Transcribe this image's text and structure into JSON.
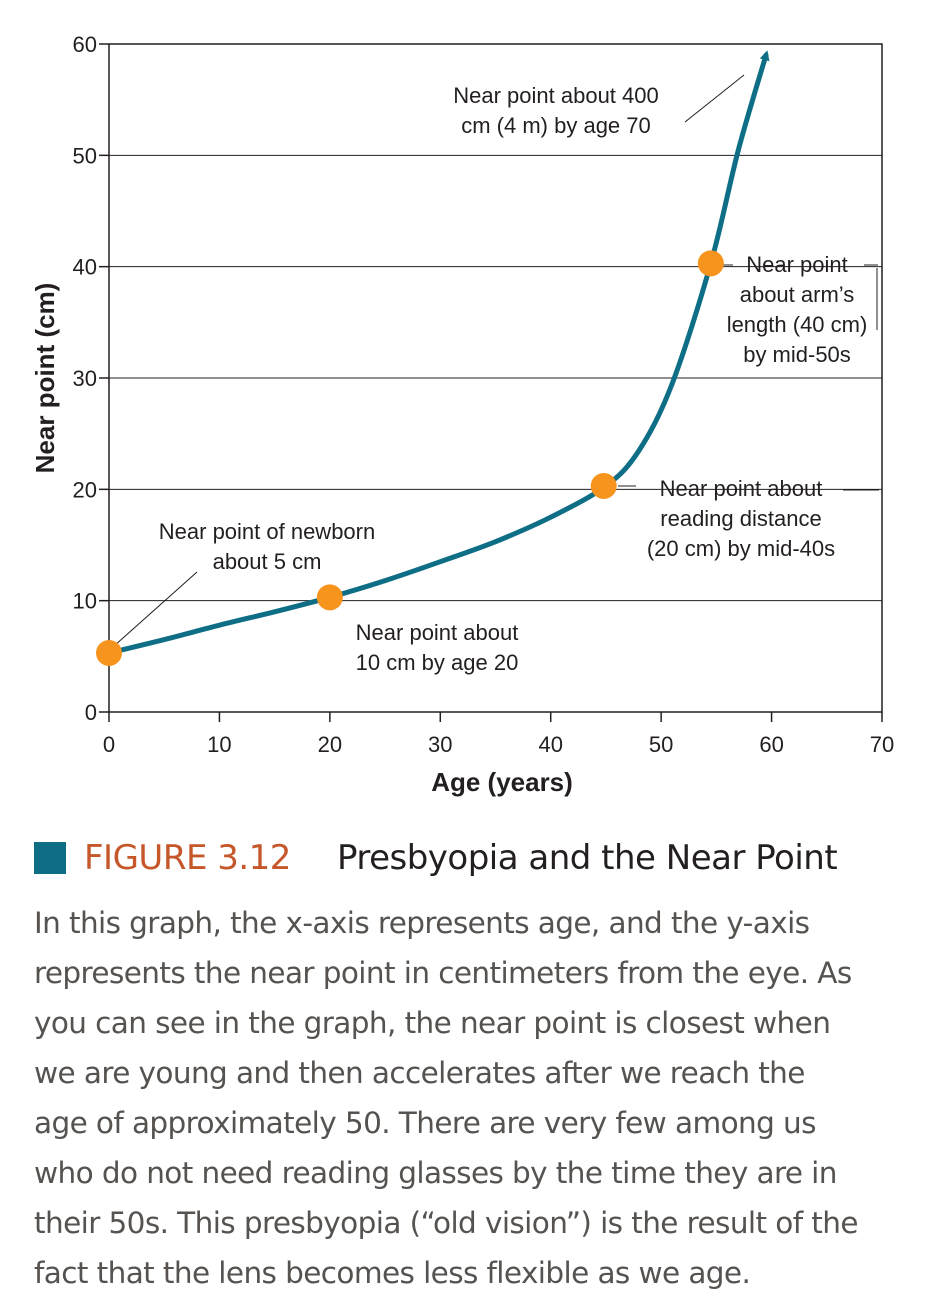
{
  "chart_data": {
    "type": "line",
    "xlabel": "Age (years)",
    "ylabel": "Near point (cm)",
    "xlim": [
      0,
      70
    ],
    "ylim": [
      0,
      60
    ],
    "x_ticks": [
      0,
      10,
      20,
      30,
      40,
      50,
      60,
      70
    ],
    "y_ticks": [
      0,
      10,
      20,
      30,
      40,
      50,
      60
    ],
    "grid": "horizontal",
    "line_color": "#0e6e86",
    "marker_color": "#f7941d",
    "curve": {
      "x": [
        0,
        5,
        10,
        15,
        20,
        25,
        30,
        35,
        40,
        45,
        48,
        51,
        54.5,
        57,
        59.5
      ],
      "y": [
        5.3,
        6.5,
        7.8,
        9.0,
        10.3,
        11.8,
        13.5,
        15.3,
        17.5,
        20.3,
        23.5,
        29.5,
        40.3,
        50.5,
        59
      ]
    },
    "highlighted_points": [
      {
        "x": 0,
        "y": 5.3
      },
      {
        "x": 20,
        "y": 10.3
      },
      {
        "x": 44.8,
        "y": 20.3
      },
      {
        "x": 54.5,
        "y": 40.3
      }
    ],
    "annotations": [
      {
        "id": "newborn",
        "lines": [
          "Near point of newborn",
          "about 5 cm"
        ]
      },
      {
        "id": "age20",
        "lines": [
          "Near point about",
          "10 cm by age 20"
        ]
      },
      {
        "id": "mid40s",
        "lines": [
          "Near point about",
          "reading distance",
          "(20 cm) by mid-40s"
        ]
      },
      {
        "id": "mid50s",
        "lines": [
          "Near point",
          "about arm’s",
          "length (40 cm)",
          "by mid-50s"
        ]
      },
      {
        "id": "age70",
        "lines": [
          "Near point about 400",
          "cm (4 m) by age 70"
        ]
      }
    ]
  },
  "figure": {
    "number": "FIGURE 3.12",
    "title": "Presbyopia and the Near Point",
    "accent_color": "#0e6e86",
    "number_color": "#c5572a",
    "caption_lines": [
      "In this graph, the x-axis represents age, and the y-axis",
      "represents the near point in centimeters from the eye. As",
      "you can see in the graph, the near point is closest when",
      "we are young and then accelerates after we reach the",
      "age of approximately 50. There are very few among us",
      "who do not need reading glasses by the time they are in",
      "their 50s. This presbyopia (“old vision”) is the result of the",
      "fact that the lens becomes less flexible as we age."
    ]
  }
}
